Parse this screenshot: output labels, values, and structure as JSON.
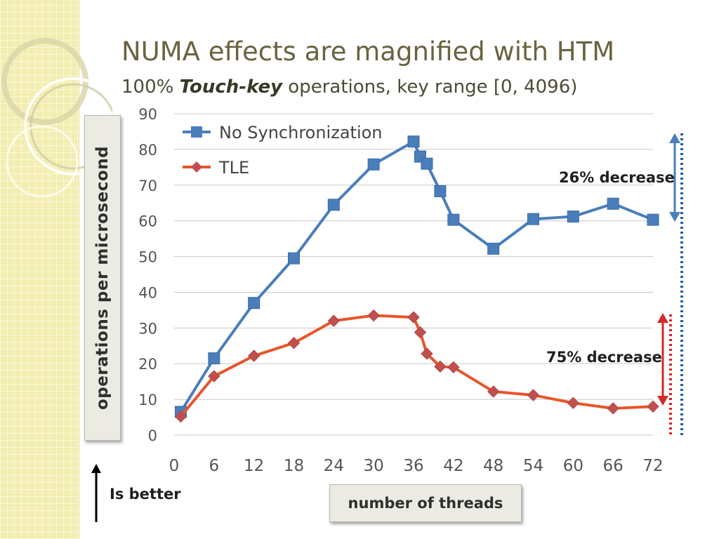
{
  "slide": {
    "title": "NUMA effects are magnified with HTM",
    "subtitle_prefix": "100% ",
    "subtitle_bold": "Touch-key",
    "subtitle_suffix": " operations, key range [0, 4096)",
    "better_label": "Is better"
  },
  "chart_data": {
    "type": "line",
    "title": "",
    "xlabel": "number of threads",
    "ylabel": "operations per microsecond",
    "x_ticks": [
      0,
      6,
      12,
      18,
      24,
      30,
      36,
      42,
      48,
      54,
      60,
      66,
      72
    ],
    "y_ticks": [
      0,
      10,
      20,
      30,
      40,
      50,
      60,
      70,
      80,
      90
    ],
    "xlim": [
      0,
      72
    ],
    "ylim": [
      0,
      90
    ],
    "grid": true,
    "legend_position": "top-left",
    "series": [
      {
        "name": "No Synchronization",
        "color": "#4a7ebb",
        "marker": "square",
        "x": [
          1,
          6,
          12,
          18,
          24,
          30,
          36,
          37,
          38,
          40,
          42,
          48,
          54,
          60,
          66,
          72
        ],
        "values": [
          6.5,
          21.5,
          37,
          49.5,
          64.5,
          75.8,
          82.2,
          78,
          76,
          68.3,
          60.3,
          52.2,
          60.5,
          61.2,
          64.8,
          60.3
        ]
      },
      {
        "name": "TLE",
        "color": "#e8552a",
        "marker": "diamond",
        "x": [
          1,
          6,
          12,
          18,
          24,
          30,
          36,
          37,
          38,
          40,
          42,
          48,
          54,
          60,
          66,
          72
        ],
        "values": [
          5.2,
          16.5,
          22.2,
          25.8,
          32,
          33.5,
          33,
          28.8,
          22.8,
          19.2,
          19,
          12.2,
          11.2,
          9,
          7.5,
          8
        ]
      }
    ],
    "annotations": [
      {
        "text": "26% decrease",
        "color": "#4a7ebb"
      },
      {
        "text": "75% decrease",
        "color": "#d42a2a"
      }
    ]
  }
}
